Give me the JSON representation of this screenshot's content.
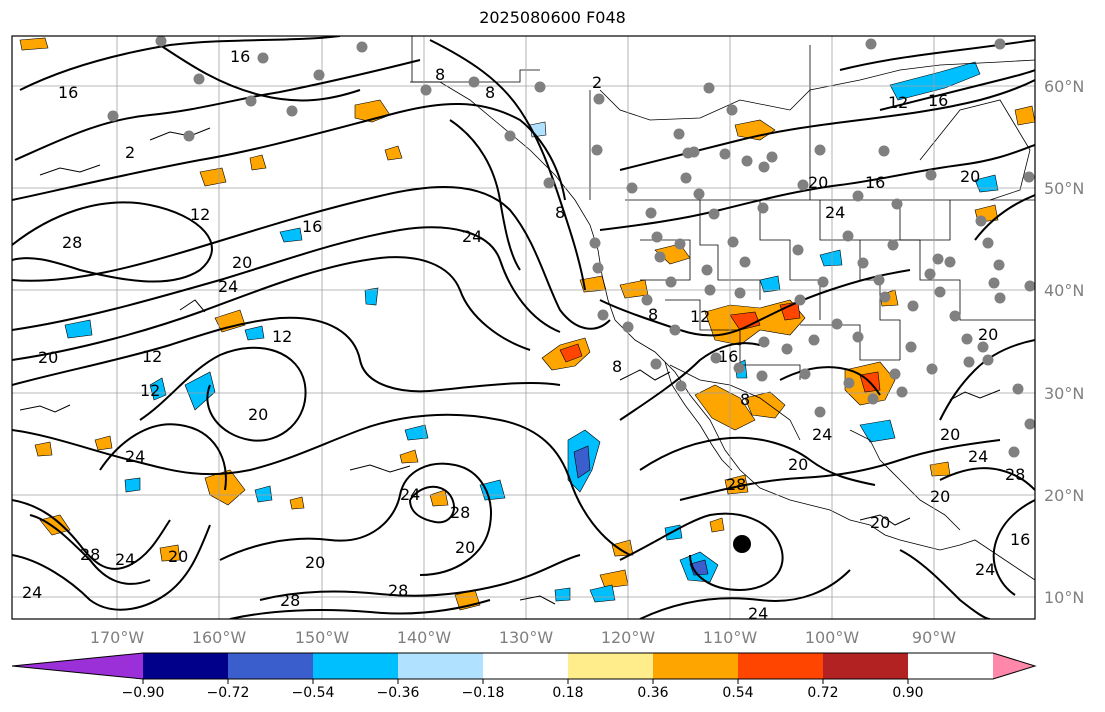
{
  "title": "2025080600 F048",
  "longitude_labels": [
    "170°W",
    "160°W",
    "150°W",
    "140°W",
    "130°W",
    "120°W",
    "110°W",
    "100°W",
    "90°W"
  ],
  "latitude_labels": [
    "60°N",
    "50°N",
    "40°N",
    "30°N",
    "20°N",
    "10°N"
  ],
  "colorbar": {
    "tick_labels": [
      "−0.90",
      "−0.72",
      "−0.54",
      "−0.36",
      "−0.18",
      "0.18",
      "0.36",
      "0.54",
      "0.72",
      "0.90"
    ],
    "colors": [
      "#9b30d9",
      "#00008b",
      "#3a5fcd",
      "#00bfff",
      "#b0e2ff",
      "#ffffff",
      "#ffec8b",
      "#ffa500",
      "#ff4500",
      "#b22222",
      "#ff88aa"
    ]
  },
  "contour_labels": [
    "16",
    "16",
    "12",
    "16",
    "2",
    "8",
    "8",
    "2",
    "12",
    "16",
    "20",
    "24",
    "28",
    "24",
    "20",
    "12",
    "20",
    "24",
    "12",
    "24",
    "20",
    "12",
    "28",
    "24",
    "28",
    "20",
    "20",
    "28",
    "24",
    "28",
    "24",
    "8",
    "8",
    "8",
    "12",
    "16",
    "8",
    "20",
    "24",
    "20",
    "20",
    "24",
    "28",
    "24",
    "20",
    "16",
    "20",
    "20",
    "16",
    "28",
    "24",
    "20"
  ],
  "map_features": {
    "station_marker_color": "#808080",
    "storm_marker_color": "#000000",
    "gridline_color": "#a0a0a0",
    "contour_color": "#000000"
  }
}
